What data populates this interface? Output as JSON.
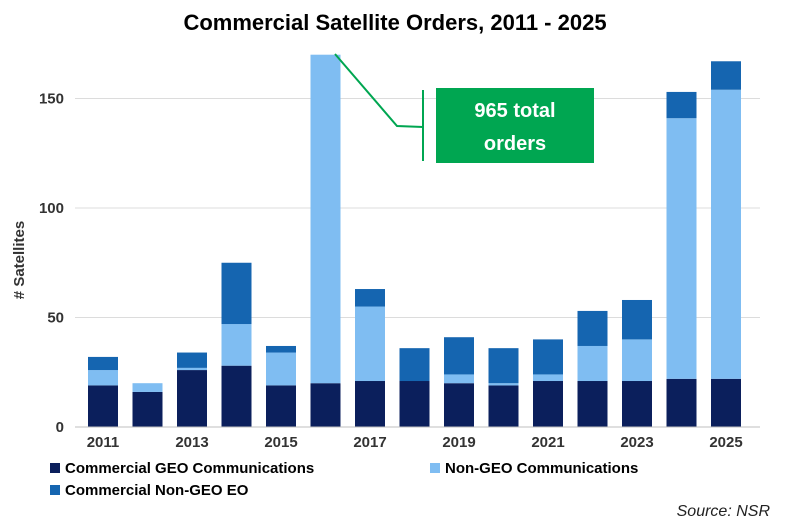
{
  "chart_data": {
    "type": "bar",
    "stacked": true,
    "title": "Commercial  Satellite Orders, 2011 - 2025",
    "ylabel": "# Satellites",
    "xlabel": "",
    "ylim": [
      0,
      170
    ],
    "yticks": [
      0,
      50,
      100,
      150
    ],
    "grid": true,
    "categories": [
      "2011",
      "2012",
      "2013",
      "2014",
      "2015",
      "2016",
      "2017",
      "2018",
      "2019",
      "2020",
      "2021",
      "2022",
      "2023",
      "2024",
      "2025"
    ],
    "x_tick_labels": [
      "2011",
      "",
      "2013",
      "",
      "2015",
      "",
      "2017",
      "",
      "2019",
      "",
      "2021",
      "",
      "2023",
      "",
      "2025"
    ],
    "series": [
      {
        "name": "Commercial GEO Communications",
        "color": "#0b1f5c",
        "values": [
          19,
          16,
          26,
          28,
          19,
          20,
          21,
          21,
          20,
          19,
          21,
          21,
          21,
          22,
          22
        ]
      },
      {
        "name": "Non-GEO Communications",
        "color": "#7fbdf2",
        "values": [
          7,
          4,
          1,
          19,
          15,
          150,
          34,
          0,
          4,
          1,
          3,
          16,
          19,
          119,
          132
        ]
      },
      {
        "name": "Commercial Non-GEO EO",
        "color": "#1565b0",
        "values": [
          6,
          0,
          7,
          28,
          3,
          0,
          8,
          15,
          17,
          16,
          16,
          16,
          18,
          12,
          13
        ]
      }
    ],
    "clipped_category": "2016",
    "legend_position": "bottom-left",
    "annotation": {
      "text_line1": "965 total",
      "text_line2": "orders",
      "color": "#00a651"
    },
    "source": "Source: NSR"
  }
}
